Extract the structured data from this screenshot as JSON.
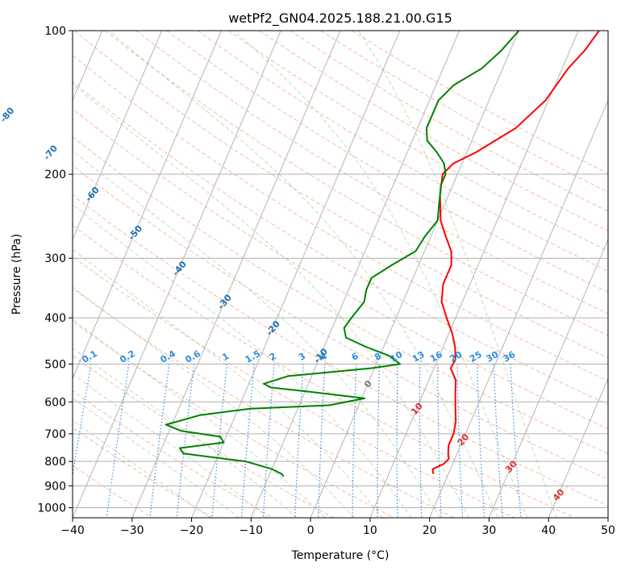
{
  "chart_data": {
    "type": "line",
    "title": "wetPf2_GN04.2025.188.21.00.G15",
    "xlabel": "Temperature (°C)",
    "ylabel": "Pressure (hPa)",
    "xlim": [
      -40,
      50
    ],
    "ylim": [
      1050,
      100
    ],
    "y_scale": "log",
    "x_ticks": [
      -40,
      -30,
      -20,
      -10,
      0,
      10,
      20,
      30,
      40,
      50
    ],
    "y_ticks": [
      100,
      200,
      300,
      400,
      500,
      600,
      700,
      800,
      900,
      1000
    ],
    "grid": true,
    "skew": true,
    "series": [
      {
        "color": "#ff0000",
        "p": [
          100,
          110,
          120,
          140,
          160,
          180,
          190,
          200,
          220,
          250,
          270,
          290,
          310,
          340,
          370,
          400,
          430,
          460,
          490,
          510,
          540,
          580,
          620,
          660,
          700,
          740,
          770,
          790,
          810,
          830,
          850
        ],
        "t": [
          13.5,
          12.5,
          11,
          9.5,
          6.5,
          1.5,
          -1.5,
          -2.5,
          -1.5,
          0.5,
          2.5,
          4.5,
          5.5,
          5.5,
          6.5,
          8.5,
          10.5,
          12,
          13,
          12.8,
          14.5,
          15.5,
          16.5,
          17.5,
          18,
          18,
          18.5,
          19,
          18.5,
          17,
          17.5
        ]
      },
      {
        "color": "#008000",
        "p": [
          100,
          110,
          120,
          130,
          140,
          150,
          160,
          170,
          180,
          190,
          200,
          210,
          230,
          250,
          270,
          290,
          310,
          330,
          350,
          370,
          400,
          420,
          440,
          460,
          480,
          500,
          510,
          530,
          550,
          560,
          570,
          590,
          610,
          620,
          640,
          670,
          690,
          710,
          730,
          750,
          770,
          800,
          830,
          850,
          860
        ],
        "t": [
          0,
          -1.5,
          -3.5,
          -7,
          -8.5,
          -8.5,
          -8.5,
          -7.5,
          -5,
          -3,
          -2,
          -2,
          -1,
          0,
          -1,
          -1.5,
          -4.5,
          -7,
          -7,
          -6.5,
          -7.5,
          -8,
          -7,
          -3,
          1.5,
          4,
          -0.5,
          -14,
          -17.5,
          -16,
          -10,
          0.5,
          -5,
          -18,
          -26,
          -31,
          -28,
          -21,
          -20,
          -27,
          -26,
          -15,
          -10,
          -8,
          -7.5
        ]
      }
    ],
    "dry_adiabats_theta_c": [
      -100,
      -90,
      -80,
      -70,
      -60,
      -50,
      -40,
      -30,
      -20,
      -10,
      0,
      10,
      20,
      30,
      40
    ],
    "mixing_ratio_gkg": [
      "0.1",
      "0.2",
      "0.4",
      "0.6",
      "1",
      "1.5",
      "2",
      "3",
      "4",
      "6",
      "8",
      "10",
      "13",
      "16",
      "20",
      "25",
      "30",
      "36"
    ],
    "mixing_ratio_values": [
      0.1,
      0.2,
      0.4,
      0.6,
      1,
      1.5,
      2,
      3,
      4,
      6,
      8,
      10,
      13,
      16,
      20,
      25,
      30,
      36
    ]
  }
}
